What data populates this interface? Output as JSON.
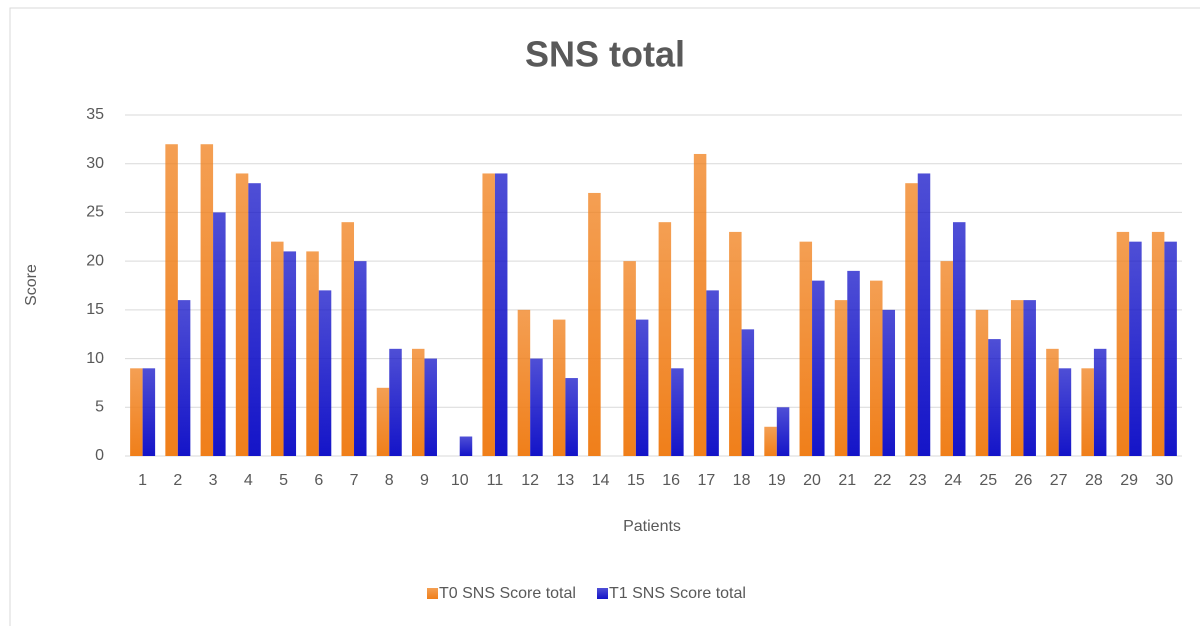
{
  "chart_data": {
    "type": "bar",
    "title": "SNS total",
    "x_label": "Patients",
    "y_label": "Score",
    "categories": [
      "1",
      "2",
      "3",
      "4",
      "5",
      "6",
      "7",
      "8",
      "9",
      "10",
      "11",
      "12",
      "13",
      "14",
      "15",
      "16",
      "17",
      "18",
      "19",
      "20",
      "21",
      "22",
      "23",
      "24",
      "25",
      "26",
      "27",
      "28",
      "29",
      "30"
    ],
    "series": [
      {
        "name": "T0 SNS Score total",
        "color": "#f07f1a",
        "values": [
          9,
          32,
          32,
          29,
          22,
          21,
          24,
          7,
          11,
          0,
          29,
          15,
          14,
          27,
          20,
          24,
          31,
          23,
          3,
          22,
          16,
          18,
          28,
          20,
          15,
          16,
          11,
          9,
          23,
          23
        ]
      },
      {
        "name": "T1 SNS Score total",
        "color": "#1414c8",
        "values": [
          9,
          16,
          25,
          28,
          21,
          17,
          20,
          11,
          10,
          2,
          29,
          10,
          8,
          0,
          14,
          9,
          17,
          13,
          5,
          18,
          19,
          15,
          29,
          24,
          12,
          16,
          9,
          11,
          22,
          22
        ]
      }
    ],
    "ylim": [
      0,
      35
    ],
    "yticks": [
      0,
      5,
      10,
      15,
      20,
      25,
      30,
      35
    ],
    "grid": true,
    "legend": "bottom"
  }
}
